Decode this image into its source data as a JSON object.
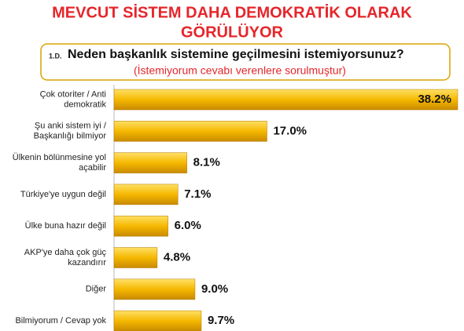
{
  "chart_data": {
    "type": "bar",
    "orientation": "horizontal",
    "title": [
      "MEVCUT SİSTEM DAHA DEMOKRATİK OLARAK",
      "GÖRÜLÜYOR"
    ],
    "question_number": "1.D.",
    "question": "Neden başkanlık sistemine geçilmesini istemiyorsunuz?",
    "subtitle": "(İstemiyorum cevabı verenlere sorulmuştur)",
    "categories": [
      [
        "Çok otoriter / Anti",
        "demokratik"
      ],
      [
        "Şu anki sistem iyi /",
        "Başkanlığı bilmiyor"
      ],
      [
        "Ülkenin bölünmesine yol",
        "açabilir"
      ],
      [
        "Türkiye'ye uygun değil"
      ],
      [
        "Ülke buna hazır değil"
      ],
      [
        "AKP'ye daha çok güç",
        "kazandırır"
      ],
      [
        "Diğer"
      ],
      [
        "Bilmiyorum / Cevap yok"
      ]
    ],
    "values": [
      38.2,
      17.0,
      8.1,
      7.1,
      6.0,
      4.8,
      9.0,
      9.7
    ],
    "value_labels": [
      "38.2%",
      "17.0%",
      "8.1%",
      "7.1%",
      "6.0%",
      "4.8%",
      "9.0%",
      "9.7%"
    ],
    "color": "#f5b800"
  }
}
